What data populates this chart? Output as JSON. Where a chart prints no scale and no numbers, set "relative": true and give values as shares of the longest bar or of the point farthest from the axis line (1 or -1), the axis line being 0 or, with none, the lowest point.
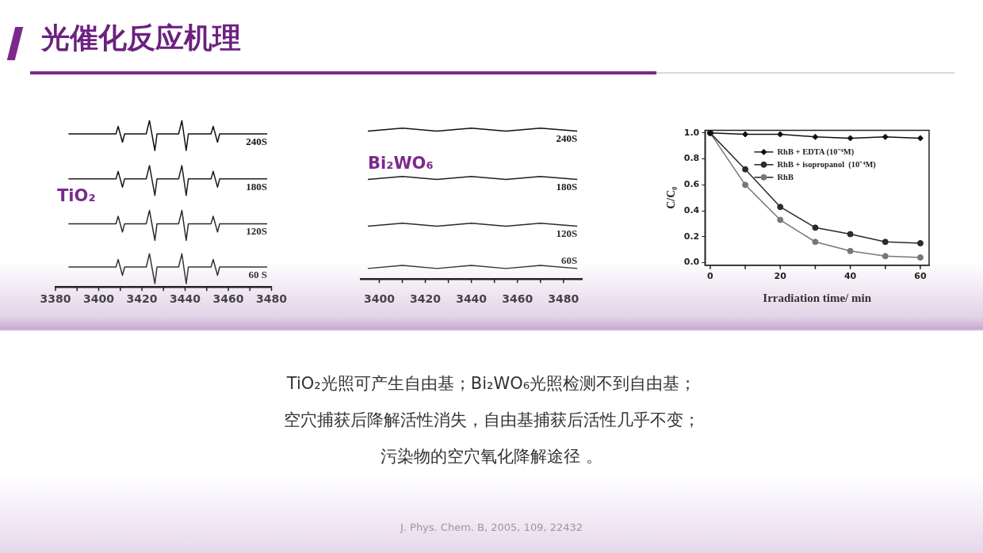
{
  "chart_data": [
    {
      "type": "other",
      "title": "光催化反应机理",
      "annotations": [
        "TiO₂光照可产生自由基；Bi₂WO₆光照检测不到自由基；",
        "空穴捕获后降解活性消失，自由基捕获后活性几乎不变；",
        "污染物的空穴氧化降解途径 。",
        "J. Phys. Chem. B, 2005, 109, 22432"
      ]
    },
    {
      "type": "line",
      "relative": true,
      "marker": "none",
      "legend": false,
      "annotations": [
        "TiO₂"
      ],
      "x": [
        3386,
        3408,
        3409,
        3411,
        3412,
        3422,
        3423.5,
        3426,
        3427,
        3437,
        3438.5,
        3440.5,
        3441.5,
        3452,
        3453,
        3455,
        3456,
        3478
      ],
      "xlim": [
        3380,
        3480
      ],
      "xticks": [
        3380,
        {
          "value": 3390,
          "label": null
        },
        3400,
        {
          "value": 3410,
          "label": null
        },
        3420,
        {
          "value": 3430,
          "label": null
        },
        3440,
        {
          "value": 3450,
          "label": null
        },
        3460,
        {
          "value": 3470,
          "label": null
        },
        3480
      ],
      "series": [
        {
          "name": "240S",
          "color": "#111111",
          "values": [
            0.92,
            0.92,
            0.965,
            0.87,
            0.92,
            0.92,
            1.0,
            0.82,
            0.92,
            0.92,
            1.0,
            0.82,
            0.92,
            0.92,
            0.965,
            0.87,
            0.92,
            0.92
          ]
        },
        {
          "name": "180S",
          "color": "#1e1e1e",
          "values": [
            0.65,
            0.65,
            0.695,
            0.6,
            0.65,
            0.65,
            0.73,
            0.55,
            0.65,
            0.65,
            0.73,
            0.55,
            0.65,
            0.65,
            0.695,
            0.6,
            0.65,
            0.65
          ]
        },
        {
          "name": "120S",
          "color": "#2a2a2a",
          "values": [
            0.38,
            0.38,
            0.425,
            0.33,
            0.38,
            0.38,
            0.46,
            0.28,
            0.38,
            0.38,
            0.46,
            0.28,
            0.38,
            0.38,
            0.425,
            0.33,
            0.38,
            0.38
          ]
        },
        {
          "name": "60 S",
          "color": "#363636",
          "values": [
            0.12,
            0.12,
            0.165,
            0.07,
            0.12,
            0.12,
            0.2,
            0.02,
            0.12,
            0.12,
            0.2,
            0.02,
            0.12,
            0.12,
            0.165,
            0.07,
            0.12,
            0.12
          ]
        }
      ]
    },
    {
      "type": "line",
      "relative": true,
      "marker": "none",
      "legend": false,
      "annotations": [
        "Bi₂WO₆"
      ],
      "x": [
        3395,
        3410,
        3425,
        3440,
        3455,
        3470,
        3486
      ],
      "xlim": [
        3392,
        3488
      ],
      "xticks": [
        3400,
        {
          "value": 3410,
          "label": null
        },
        3420,
        {
          "value": 3430,
          "label": null
        },
        3440,
        {
          "value": 3450,
          "label": null
        },
        3460,
        {
          "value": 3470,
          "label": null
        },
        3480
      ],
      "series": [
        {
          "name": "240S",
          "color": "#111111",
          "values": [
            0.98,
            1.0,
            0.98,
            1.0,
            0.98,
            1.0,
            0.98
          ]
        },
        {
          "name": "180S",
          "color": "#1e1e1e",
          "values": [
            0.66,
            0.68,
            0.66,
            0.68,
            0.66,
            0.68,
            0.66
          ]
        },
        {
          "name": "120S",
          "color": "#2a2a2a",
          "values": [
            0.35,
            0.37,
            0.35,
            0.37,
            0.35,
            0.37,
            0.35
          ]
        },
        {
          "name": "60S",
          "color": "#363636",
          "values": [
            0.07,
            0.09,
            0.07,
            0.09,
            0.07,
            0.09,
            0.07
          ]
        }
      ]
    },
    {
      "type": "line",
      "xlabel": "Irradiation time/ min",
      "ylabel": "C/C₀",
      "legend": "top right",
      "marker": "circle",
      "x": [
        0,
        10,
        20,
        30,
        40,
        50,
        60
      ],
      "xlim": [
        -1.5,
        62.5
      ],
      "ylim": [
        -0.02,
        1.02
      ],
      "xticks": [
        0,
        {
          "value": 10,
          "label": null
        },
        20,
        {
          "value": 30,
          "label": null
        },
        40,
        {
          "value": 50,
          "label": null
        },
        60
      ],
      "yticks": [
        {
          "value": 0,
          "label": "0.0"
        },
        0.2,
        0.4,
        0.6,
        0.8,
        {
          "value": 1,
          "label": "1.0"
        }
      ],
      "series": [
        {
          "name": "RhB + EDTA (10⁻⁴M)",
          "color": "#111111",
          "marker": "diamond",
          "values": [
            1.0,
            0.99,
            0.99,
            0.97,
            0.96,
            0.97,
            0.96
          ]
        },
        {
          "name": "RhB + isopropanol  (10⁻⁴M)",
          "color": "#2b2b2b",
          "values": [
            1.0,
            0.72,
            0.43,
            0.27,
            0.22,
            0.16,
            0.15
          ]
        },
        {
          "name": "RhB",
          "color": "#777777",
          "values": [
            1.0,
            0.6,
            0.33,
            0.16,
            0.09,
            0.05,
            0.04
          ]
        }
      ]
    }
  ]
}
